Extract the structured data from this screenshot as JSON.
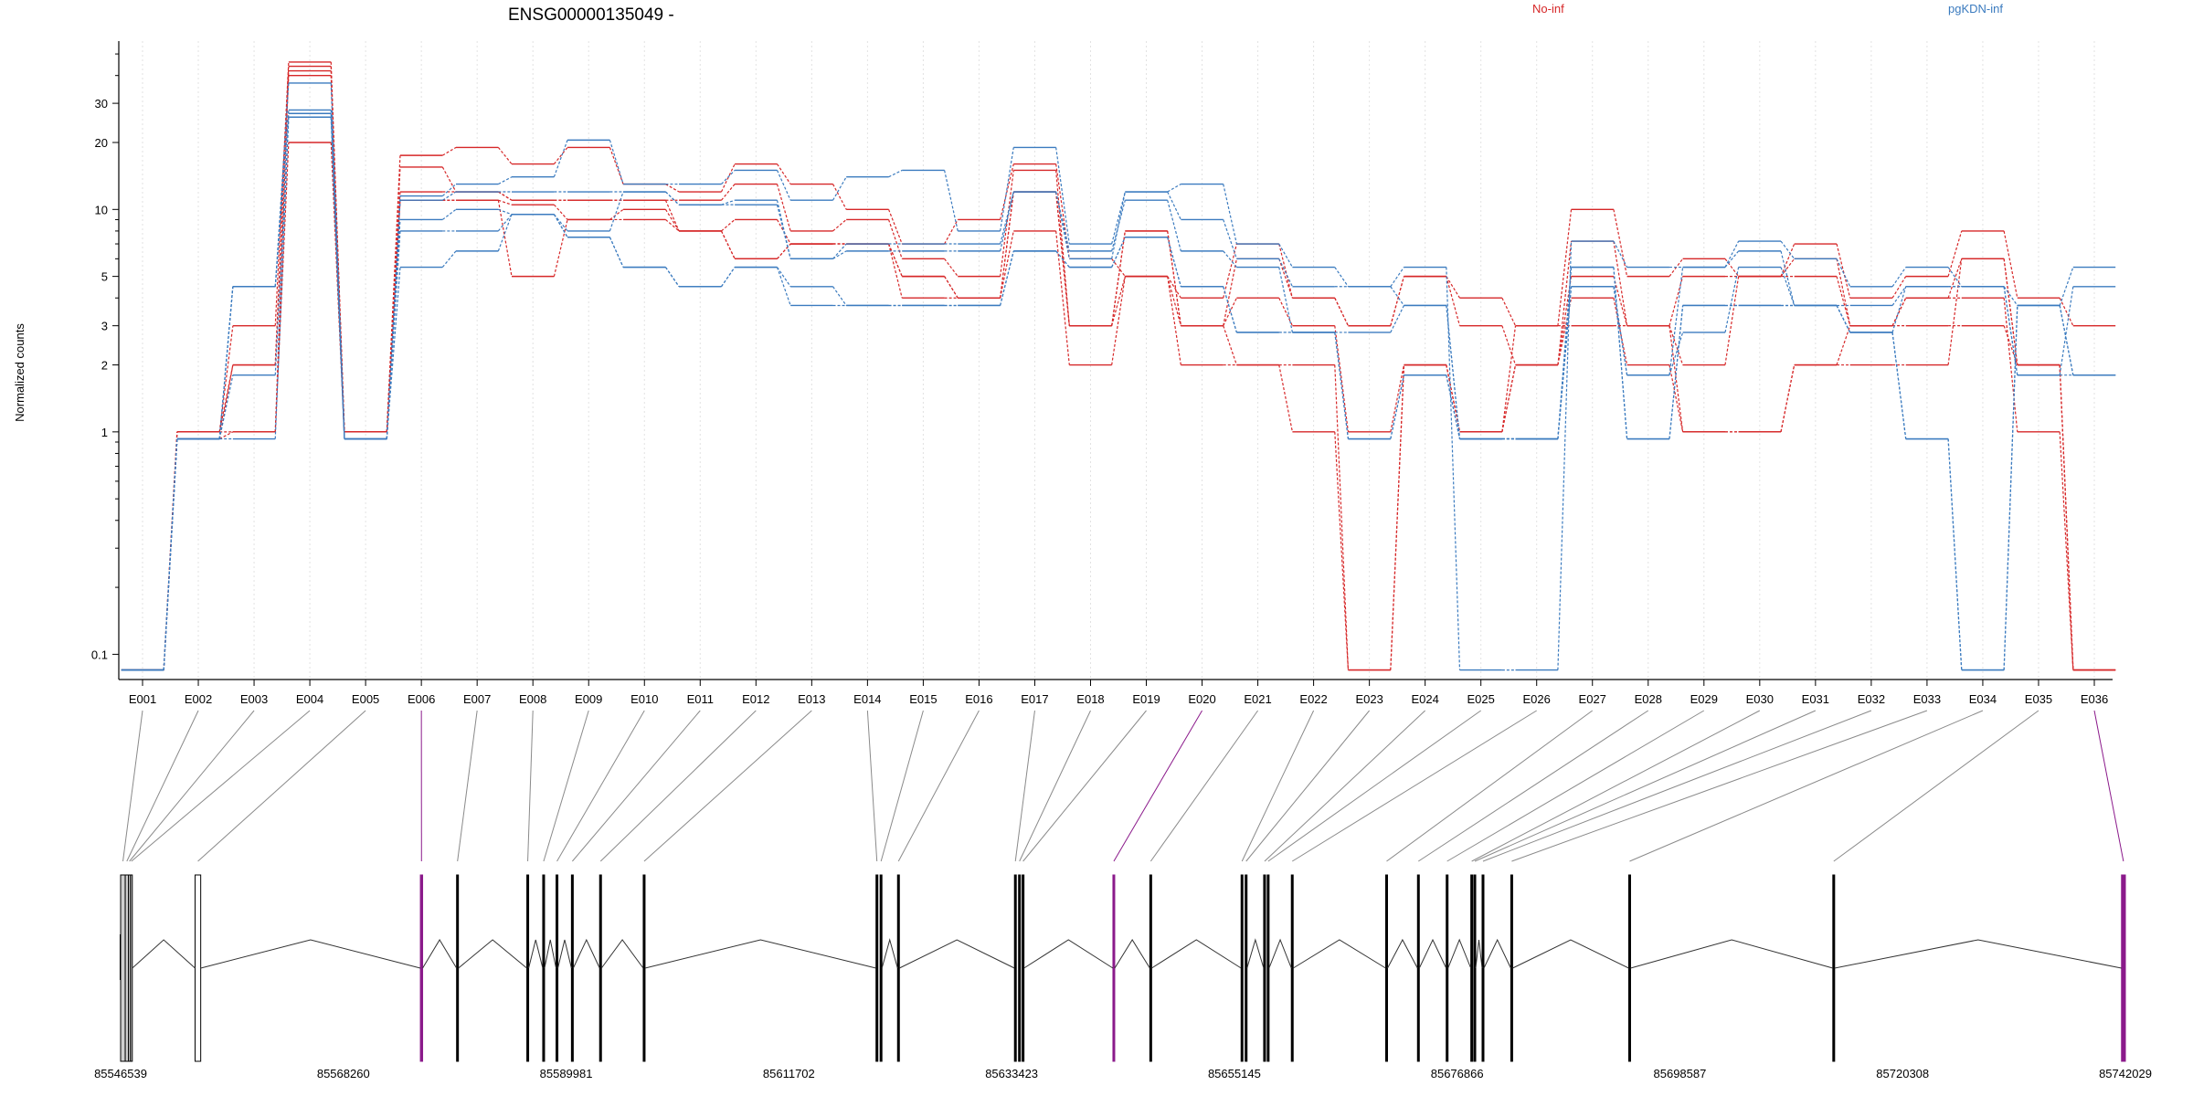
{
  "chart_data": {
    "type": "line",
    "title": "ENSG00000135049 -",
    "ylabel": "Normalized counts",
    "yscale": "log",
    "ylim": [
      0.08,
      55
    ],
    "yticks": [
      0.1,
      1,
      2,
      3,
      5,
      10,
      20,
      30
    ],
    "ytick_labels": [
      "0.1",
      "1",
      "2",
      "3",
      "5",
      "10",
      "20",
      "30"
    ],
    "grid": "vertical dotted",
    "legend": [
      {
        "name": "No-inf",
        "color": "#d62728"
      },
      {
        "name": "pgKDN-inf",
        "color": "#3b7bbf"
      }
    ],
    "categories": [
      "E001",
      "E002",
      "E003",
      "E004",
      "E005",
      "E006",
      "E007",
      "E008",
      "E009",
      "E010",
      "E011",
      "E012",
      "E013",
      "E014",
      "E015",
      "E016",
      "E017",
      "E018",
      "E019",
      "E020",
      "E021",
      "E022",
      "E023",
      "E024",
      "E025",
      "E026",
      "E027",
      "E028",
      "E029",
      "E030",
      "E031",
      "E032",
      "E033",
      "E034",
      "E035",
      "E036"
    ],
    "series": [
      {
        "group": "No-inf",
        "color": "#d62728",
        "values": [
          0.085,
          1.0,
          3.0,
          46,
          1.0,
          17.5,
          19,
          16,
          19,
          13,
          12,
          16,
          13,
          10,
          7,
          9,
          16,
          6,
          5,
          4,
          7,
          4,
          3,
          5,
          4,
          3,
          10,
          5,
          6,
          5,
          7,
          4,
          5,
          8,
          4,
          3
        ]
      },
      {
        "group": "No-inf",
        "color": "#d62728",
        "values": [
          0.085,
          1.0,
          2.0,
          44,
          1.0,
          15.5,
          12,
          11,
          11,
          11,
          11,
          13,
          8,
          9,
          6,
          5,
          15,
          3,
          8,
          3,
          6,
          4,
          3,
          5,
          3,
          2,
          7.2,
          3,
          5,
          5,
          6,
          3,
          4,
          6,
          2,
          0.085
        ]
      },
      {
        "group": "No-inf",
        "color": "#d62728",
        "values": [
          0.085,
          1.0,
          1.0,
          42,
          1.0,
          12,
          12,
          11,
          11,
          11,
          8,
          9,
          7,
          7,
          5,
          4,
          12,
          3,
          8,
          3,
          4,
          3,
          1.0,
          2,
          1.0,
          2,
          5,
          3,
          2,
          5,
          5,
          3,
          4,
          4,
          1.0,
          0.085
        ]
      },
      {
        "group": "No-inf",
        "color": "#d62728",
        "values": [
          0.085,
          0.93,
          2.0,
          40,
          1.0,
          11,
          11,
          10.5,
          9,
          10,
          8,
          6,
          7,
          7,
          5,
          4,
          12,
          3,
          5,
          3,
          2,
          2,
          0.085,
          2,
          1.0,
          2,
          4,
          2,
          1.0,
          1.0,
          2,
          2,
          2,
          6,
          2,
          0.085
        ]
      },
      {
        "group": "No-inf",
        "color": "#d62728",
        "values": [
          0.085,
          0.93,
          1.0,
          20,
          0.93,
          11,
          11,
          5,
          9,
          9,
          8,
          6,
          7,
          7,
          4,
          4,
          8,
          2,
          5,
          2,
          2,
          1.0,
          0.085,
          2,
          1.0,
          3,
          3,
          3,
          1.0,
          1.0,
          2,
          3,
          3,
          3,
          2,
          0.085
        ]
      },
      {
        "group": "pgKDN-inf",
        "color": "#3b7bbf",
        "values": [
          0.085,
          0.93,
          4.5,
          37,
          0.93,
          11.5,
          13,
          14,
          20.5,
          13,
          13,
          15,
          11,
          14,
          15,
          8,
          19,
          7,
          12,
          13,
          7,
          5.5,
          4.5,
          5.5,
          0.085,
          0.085,
          7.2,
          5.5,
          5.5,
          7.2,
          6,
          4.5,
          5.5,
          4.5,
          3.7,
          5.5
        ]
      },
      {
        "group": "pgKDN-inf",
        "color": "#3b7bbf",
        "values": [
          0.085,
          0.93,
          4.5,
          28,
          0.93,
          11,
          12,
          12,
          12,
          12,
          10.5,
          10.5,
          6,
          7,
          7,
          7,
          12,
          6,
          12,
          9,
          6,
          4.5,
          4.5,
          3.7,
          0.93,
          0.93,
          4.5,
          1.8,
          5.5,
          6.5,
          3.7,
          3.7,
          4.5,
          4.5,
          1.8,
          4.5
        ]
      },
      {
        "group": "pgKDN-inf",
        "color": "#3b7bbf",
        "values": [
          0.085,
          0.93,
          4.5,
          27,
          0.93,
          9,
          10,
          9.5,
          8,
          12,
          10.5,
          11,
          6,
          6.5,
          6.5,
          6.5,
          12,
          6.5,
          11,
          6.5,
          5.5,
          2.8,
          2.8,
          3.7,
          0.93,
          0.93,
          4.5,
          1.8,
          2.8,
          5.5,
          3.7,
          2.8,
          4.5,
          4.5,
          1.8,
          1.8
        ]
      },
      {
        "group": "pgKDN-inf",
        "color": "#3b7bbf",
        "values": [
          0.085,
          0.93,
          1.8,
          26,
          0.93,
          8,
          8,
          9.5,
          7.5,
          5.5,
          4.5,
          5.5,
          4.5,
          3.7,
          3.7,
          3.7,
          6.5,
          5.5,
          7.5,
          4.5,
          2.8,
          2.8,
          0.93,
          1.8,
          0.93,
          0.93,
          5.5,
          0.93,
          3.7,
          3.7,
          3.7,
          2.8,
          0.93,
          0.085,
          3.7,
          1.8
        ]
      },
      {
        "group": "pgKDN-inf",
        "color": "#3b7bbf",
        "values": [
          0.085,
          0.93,
          0.93,
          26,
          0.93,
          5.5,
          6.5,
          9.5,
          7.5,
          5.5,
          4.5,
          5.5,
          3.7,
          3.7,
          3.7,
          3.7,
          6.5,
          5.5,
          7.5,
          4.5,
          2.8,
          2.8,
          0.93,
          1.8,
          0.93,
          0.93,
          5.5,
          0.93,
          3.7,
          3.7,
          3.7,
          2.8,
          0.93,
          0.085,
          3.7,
          1.8
        ]
      }
    ],
    "genome": {
      "start": 85546539,
      "end": 85742029,
      "tick_labels": [
        "85546539",
        "85568260",
        "85589981",
        "85611702",
        "85633423",
        "85655145",
        "85676866",
        "85698587",
        "85720308",
        "85742029"
      ],
      "highlight_color": "#8b1a8b",
      "exons": [
        {
          "start": 85546539,
          "end": 85546990,
          "shade": "gray"
        },
        {
          "start": 85546990,
          "end": 85547300,
          "shade": "gray"
        },
        {
          "start": 85547300,
          "end": 85547500,
          "shade": "gray"
        },
        {
          "start": 85547500,
          "end": 85547600,
          "shade": "gray"
        },
        {
          "start": 85553800,
          "end": 85554350,
          "shade": "white"
        },
        {
          "start": 85575770,
          "end": 85575990,
          "shade": "highlight"
        },
        {
          "start": 85579300,
          "end": 85579450,
          "shade": "black"
        },
        {
          "start": 85586150,
          "end": 85586300,
          "shade": "black"
        },
        {
          "start": 85587700,
          "end": 85587850,
          "shade": "black"
        },
        {
          "start": 85589000,
          "end": 85589150,
          "shade": "black"
        },
        {
          "start": 85590500,
          "end": 85590650,
          "shade": "black"
        },
        {
          "start": 85593250,
          "end": 85593400,
          "shade": "black"
        },
        {
          "start": 85597500,
          "end": 85597650,
          "shade": "black"
        },
        {
          "start": 85620200,
          "end": 85620350,
          "shade": "black"
        },
        {
          "start": 85620600,
          "end": 85620750,
          "shade": "black"
        },
        {
          "start": 85622300,
          "end": 85622450,
          "shade": "black"
        },
        {
          "start": 85633700,
          "end": 85633850,
          "shade": "black"
        },
        {
          "start": 85634100,
          "end": 85634250,
          "shade": "black"
        },
        {
          "start": 85634450,
          "end": 85634600,
          "shade": "black"
        },
        {
          "start": 85643300,
          "end": 85643450,
          "shade": "highlight"
        },
        {
          "start": 85646900,
          "end": 85647050,
          "shade": "black"
        },
        {
          "start": 85655800,
          "end": 85655950,
          "shade": "black"
        },
        {
          "start": 85656200,
          "end": 85656350,
          "shade": "black"
        },
        {
          "start": 85658000,
          "end": 85658150,
          "shade": "black"
        },
        {
          "start": 85658350,
          "end": 85658500,
          "shade": "black"
        },
        {
          "start": 85660700,
          "end": 85660850,
          "shade": "black"
        },
        {
          "start": 85669900,
          "end": 85670050,
          "shade": "black"
        },
        {
          "start": 85673000,
          "end": 85673150,
          "shade": "black"
        },
        {
          "start": 85675800,
          "end": 85675950,
          "shade": "black"
        },
        {
          "start": 85678200,
          "end": 85678350,
          "shade": "black"
        },
        {
          "start": 85678500,
          "end": 85678650,
          "shade": "black"
        },
        {
          "start": 85679300,
          "end": 85679450,
          "shade": "black"
        },
        {
          "start": 85682100,
          "end": 85682250,
          "shade": "black"
        },
        {
          "start": 85693600,
          "end": 85693750,
          "shade": "black"
        },
        {
          "start": 85713500,
          "end": 85713650,
          "shade": "black"
        },
        {
          "start": 85741650,
          "end": 85742029,
          "shade": "highlight"
        }
      ]
    }
  }
}
